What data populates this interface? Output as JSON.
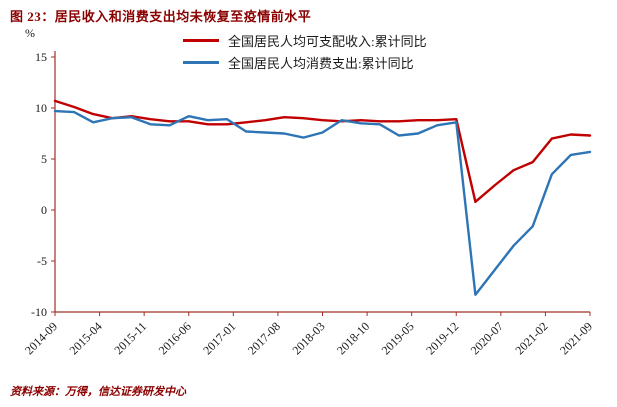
{
  "figure": {
    "title": "图 23：居民收入和消费支出均未恢复至疫情前水平",
    "unit_label": "%",
    "source": "资料来源：万得，信达证券研发中心"
  },
  "legend": {
    "items": [
      {
        "label": "全国居民人均可支配收入:累计同比"
      },
      {
        "label": "全国居民人均消费支出:累计同比"
      }
    ]
  },
  "colors": {
    "title": "#8B0000",
    "source": "#8B0000",
    "axis": "#A03028",
    "tick_labels": "#1A1A1A"
  },
  "chart_data": {
    "type": "line",
    "title": "图 23：居民收入和消费支出均未恢复至疫情前水平",
    "ylabel": "%",
    "ylim": [
      -10,
      15
    ],
    "y_ticks": [
      15,
      10,
      5,
      0,
      -5,
      -10
    ],
    "grid": false,
    "legend_position": "top-center",
    "x_tick_labels": [
      "2014-09",
      "2015-04",
      "2015-11",
      "2016-06",
      "2017-01",
      "2017-08",
      "2018-03",
      "2018-10",
      "2019-05",
      "2019-12",
      "2020-07",
      "2021-02",
      "2021-09"
    ],
    "x_tick_months": [
      0,
      7,
      14,
      21,
      28,
      35,
      42,
      49,
      56,
      63,
      70,
      77,
      84
    ],
    "x": [
      "2014-09",
      "2014-12",
      "2015-03",
      "2015-06",
      "2015-09",
      "2015-12",
      "2016-03",
      "2016-06",
      "2016-09",
      "2016-12",
      "2017-03",
      "2017-06",
      "2017-09",
      "2017-12",
      "2018-03",
      "2018-06",
      "2018-09",
      "2018-12",
      "2019-03",
      "2019-06",
      "2019-09",
      "2019-12",
      "2020-03",
      "2020-06",
      "2020-09",
      "2020-12",
      "2021-03",
      "2021-06",
      "2021-09"
    ],
    "x_months": [
      0,
      3,
      6,
      9,
      12,
      15,
      18,
      21,
      24,
      27,
      30,
      33,
      36,
      39,
      42,
      45,
      48,
      51,
      54,
      57,
      60,
      63,
      66,
      69,
      72,
      75,
      78,
      81,
      84
    ],
    "series": [
      {
        "id": "income",
        "name": "全国居民人均可支配收入:累计同比",
        "color": "#C00000",
        "values": [
          10.7,
          10.1,
          9.4,
          9.0,
          9.2,
          8.9,
          8.7,
          8.7,
          8.4,
          8.4,
          8.6,
          8.8,
          9.1,
          9.0,
          8.8,
          8.7,
          8.8,
          8.7,
          8.7,
          8.8,
          8.8,
          8.9,
          0.8,
          2.4,
          3.9,
          4.7,
          7.0,
          7.4,
          7.3
        ]
      },
      {
        "id": "consumption",
        "name": "全国居民人均消费支出:累计同比",
        "color": "#2E75B6",
        "values": [
          9.7,
          9.6,
          8.6,
          9.0,
          9.1,
          8.4,
          8.3,
          9.2,
          8.8,
          8.9,
          7.7,
          7.6,
          7.5,
          7.1,
          7.6,
          8.8,
          8.5,
          8.4,
          7.3,
          7.5,
          8.3,
          8.6,
          -8.3,
          -5.9,
          -3.5,
          -1.6,
          3.5,
          5.4,
          5.7
        ]
      }
    ]
  }
}
